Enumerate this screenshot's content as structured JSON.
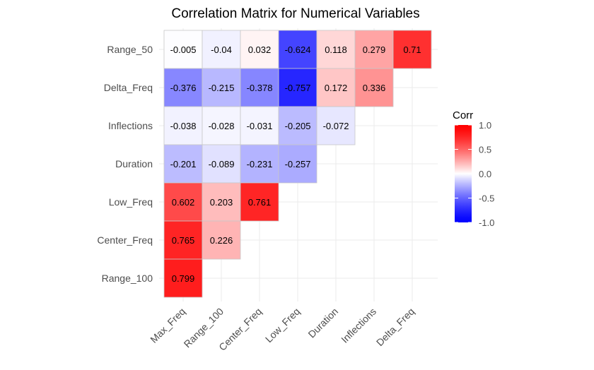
{
  "chart_data": {
    "type": "heatmap",
    "title": "Correlation Matrix for Numerical Variables",
    "xlabel": "",
    "ylabel": "",
    "x_categories": [
      "Max_Freq",
      "Range_100",
      "Center_Freq",
      "Low_Freq",
      "Duration",
      "Inflections",
      "Delta_Freq"
    ],
    "y_categories": [
      "Range_50",
      "Delta_Freq",
      "Inflections",
      "Duration",
      "Low_Freq",
      "Center_Freq",
      "Range_100"
    ],
    "values": [
      [
        -0.005,
        -0.04,
        0.032,
        -0.624,
        0.118,
        0.279,
        0.71
      ],
      [
        -0.376,
        -0.215,
        -0.378,
        -0.757,
        0.172,
        0.336,
        null
      ],
      [
        -0.038,
        -0.028,
        -0.031,
        -0.205,
        -0.072,
        null,
        null
      ],
      [
        -0.201,
        -0.089,
        -0.231,
        -0.257,
        null,
        null,
        null
      ],
      [
        0.602,
        0.203,
        0.761,
        null,
        null,
        null,
        null
      ],
      [
        0.765,
        0.226,
        null,
        null,
        null,
        null,
        null
      ],
      [
        0.799,
        null,
        null,
        null,
        null,
        null,
        null
      ]
    ],
    "value_labels": [
      [
        "-0.005",
        "-0.04",
        "0.032",
        "-0.624",
        "0.118",
        "0.279",
        "0.71"
      ],
      [
        "-0.376",
        "-0.215",
        "-0.378",
        "-0.757",
        "0.172",
        "0.336",
        ""
      ],
      [
        "-0.038",
        "-0.028",
        "-0.031",
        "-0.205",
        "-0.072",
        "",
        ""
      ],
      [
        "-0.201",
        "-0.089",
        "-0.231",
        "-0.257",
        "",
        "",
        ""
      ],
      [
        "0.602",
        "0.203",
        "0.761",
        "",
        "",
        "",
        ""
      ],
      [
        "0.765",
        "0.226",
        "",
        "",
        "",
        "",
        ""
      ],
      [
        "0.799",
        "",
        "",
        "",
        "",
        "",
        ""
      ]
    ],
    "color_scale": {
      "low": "#0000ff",
      "mid": "#ffffff",
      "high": "#ff0000",
      "limits": [
        -1,
        1
      ]
    },
    "legend": {
      "title": "Corr",
      "position": "right",
      "breaks": [
        1.0,
        0.5,
        0.0,
        -0.5,
        -1.0
      ],
      "labels": [
        "1.0",
        "0.5",
        "0.0",
        "-0.5",
        "-1.0"
      ]
    },
    "grid": true,
    "x_tick_rotation": 45
  }
}
